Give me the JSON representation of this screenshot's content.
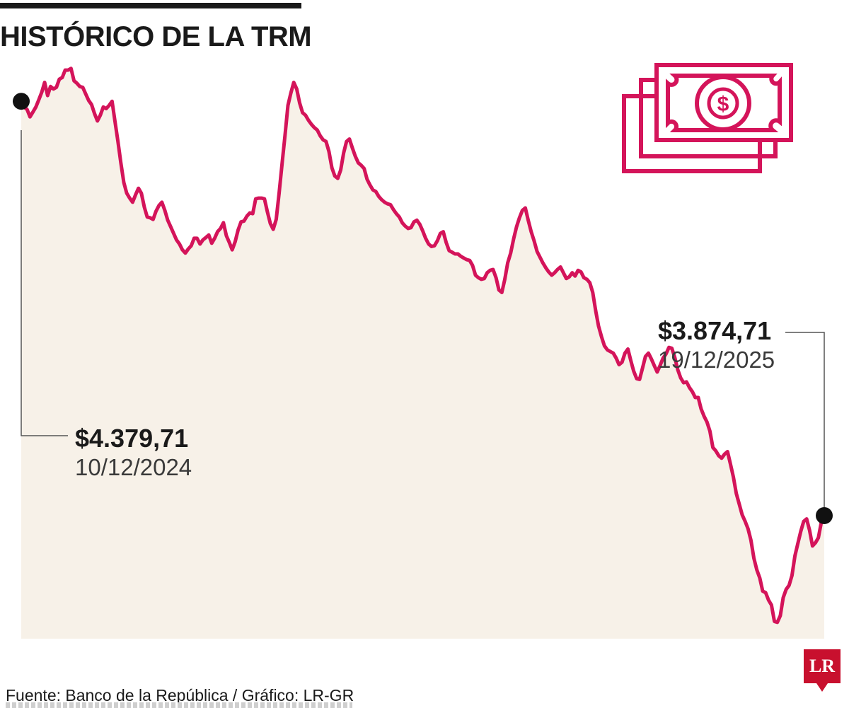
{
  "title": "HISTÓRICO DE LA TRM",
  "source": "Fuente: Banco de la República / Gráfico: LR-GR",
  "logo_text": "LR",
  "icon": "money-bills-icon",
  "colors": {
    "line": "#d4145a",
    "area": "#f7f1e8",
    "marker": "#111111",
    "leader": "#555555"
  },
  "annotations": {
    "start": {
      "value": "$4.379,71",
      "date": "10/12/2024"
    },
    "end": {
      "value": "$3.874,71",
      "date": "19/12/2025"
    }
  },
  "chart_data": {
    "type": "area",
    "title": "HISTÓRICO DE LA TRM",
    "xlabel": "",
    "ylabel": "",
    "x_range": [
      "10/12/2024",
      "19/12/2025"
    ],
    "ylim": [
      3725,
      4425
    ],
    "grid": false,
    "legend": "none",
    "series": [
      {
        "values": [
          4380,
          4373,
          4370,
          4361,
          4367,
          4373,
          4382,
          4391,
          4403,
          4387,
          4398,
          4395,
          4397,
          4407,
          4409,
          4418,
          4418,
          4420,
          4405,
          4402,
          4398,
          4397,
          4389,
          4381,
          4376,
          4365,
          4356,
          4363,
          4373,
          4371,
          4375,
          4380,
          4355,
          4331,
          4305,
          4281,
          4268,
          4262,
          4257,
          4266,
          4274,
          4268,
          4251,
          4239,
          4238,
          4236,
          4246,
          4253,
          4257,
          4247,
          4235,
          4227,
          4219,
          4211,
          4206,
          4199,
          4195,
          4200,
          4204,
          4213,
          4213,
          4206,
          4211,
          4214,
          4217,
          4207,
          4213,
          4221,
          4225,
          4232,
          4216,
          4208,
          4199,
          4209,
          4223,
          4233,
          4234,
          4240,
          4244,
          4243,
          4261,
          4262,
          4262,
          4261,
          4245,
          4231,
          4224,
          4236,
          4268,
          4304,
          4338,
          4375,
          4390,
          4403,
          4395,
          4378,
          4366,
          4363,
          4357,
          4352,
          4348,
          4345,
          4338,
          4333,
          4331,
          4319,
          4299,
          4289,
          4286,
          4296,
          4317,
          4331,
          4334,
          4323,
          4313,
          4305,
          4302,
          4298,
          4285,
          4278,
          4272,
          4270,
          4264,
          4260,
          4257,
          4255,
          4254,
          4248,
          4243,
          4239,
          4232,
          4228,
          4225,
          4226,
          4233,
          4235,
          4230,
          4222,
          4213,
          4206,
          4203,
          4204,
          4210,
          4219,
          4221,
          4208,
          4198,
          4196,
          4194,
          4194,
          4191,
          4189,
          4187,
          4186,
          4180,
          4168,
          4165,
          4163,
          4164,
          4171,
          4174,
          4175,
          4165,
          4150,
          4147,
          4163,
          4183,
          4195,
          4212,
          4227,
          4238,
          4247,
          4250,
          4235,
          4221,
          4210,
          4197,
          4190,
          4183,
          4177,
          4172,
          4168,
          4171,
          4175,
          4178,
          4171,
          4164,
          4166,
          4171,
          4167,
          4174,
          4172,
          4165,
          4163,
          4159,
          4147,
          4125,
          4106,
          4093,
          4082,
          4077,
          4075,
          4073,
          4067,
          4059,
          4062,
          4073,
          4078,
          4064,
          4051,
          4042,
          4041,
          4055,
          4069,
          4073,
          4066,
          4058,
          4050,
          4058,
          4067,
          4072,
          4080,
          4079,
          4068,
          4053,
          4043,
          4037,
          4038,
          4031,
          4026,
          4019,
          4019,
          4005,
          3996,
          3989,
          3978,
          3958,
          3954,
          3948,
          3945,
          3950,
          3953,
          3938,
          3922,
          3902,
          3889,
          3876,
          3868,
          3859,
          3845,
          3823,
          3809,
          3799,
          3783,
          3781,
          3772,
          3766,
          3746,
          3745,
          3753,
          3775,
          3785,
          3790,
          3802,
          3826,
          3841,
          3856,
          3868,
          3871,
          3857,
          3838,
          3842,
          3848,
          3867,
          3875
        ]
      }
    ]
  }
}
